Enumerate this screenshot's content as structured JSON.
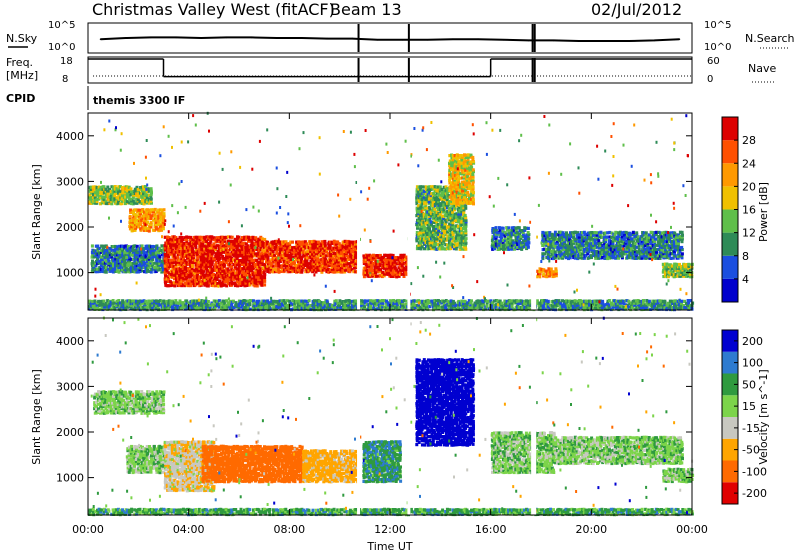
{
  "header": {
    "station": "Christmas Valley West (fitACF)",
    "beam": "Beam 13",
    "date": "02/Jul/2012"
  },
  "noise_panel": {
    "left_label": "N.Sky",
    "right_label": "N.Search",
    "left_ticks": [
      "10^5",
      "10^0"
    ],
    "right_ticks": [
      "10^5",
      "10^0"
    ]
  },
  "freq_panel": {
    "left_label_1": "Freq.",
    "left_label_2": "[MHz]",
    "right_label": "Nave",
    "left_ticks": [
      "18",
      "8"
    ],
    "right_ticks": [
      "60",
      "0"
    ]
  },
  "cpid": {
    "label": "CPID",
    "program": "themis 3300 IF"
  },
  "chart_data": [
    {
      "type": "line",
      "name_left": "N.Sky",
      "name_right": "N.Search",
      "ylim_left": [
        1,
        100000
      ],
      "log_scale": true,
      "x": [
        "00:00",
        "01:00",
        "02:00",
        "03:00",
        "04:00",
        "05:00",
        "06:00",
        "07:00",
        "08:00",
        "09:00",
        "10:00",
        "11:00",
        "12:00",
        "13:00",
        "14:00",
        "15:00",
        "16:00",
        "17:00",
        "18:00",
        "19:00",
        "20:00",
        "21:00",
        "22:00",
        "23:00"
      ],
      "y_sky_log10": [
        2.3,
        2.5,
        2.6,
        2.6,
        2.5,
        2.6,
        2.6,
        2.5,
        2.5,
        2.4,
        2.4,
        2.2,
        2.2,
        2.2,
        2.3,
        2.3,
        2.2,
        2.1,
        2.1,
        2.0,
        2.0,
        2.0,
        2.1,
        2.3
      ]
    },
    {
      "type": "line",
      "name_left": "Freq. [MHz]",
      "name_right": "Nave",
      "ylim_left": [
        8,
        18
      ],
      "ylim_right": [
        0,
        60
      ],
      "freq_steps": [
        {
          "from": "00:00",
          "to": "03:00",
          "value": 18
        },
        {
          "from": "03:00",
          "to": "16:00",
          "value": 10
        },
        {
          "from": "16:00",
          "to": "24:00",
          "value": 18
        }
      ],
      "gaps": [
        "10:45",
        "12:45",
        "17:40",
        "17:45"
      ]
    },
    {
      "type": "heatmap",
      "quantity": "Power",
      "ylabel": "Slant Range [km]",
      "colorbar_label": "Power [dB]",
      "colorbar_ticks": [
        4,
        8,
        12,
        16,
        20,
        24,
        28
      ],
      "clim": [
        0,
        30
      ],
      "yticks": [
        1000,
        2000,
        3000,
        4000
      ],
      "ylim": [
        180,
        4500
      ],
      "xticks": [
        "00:00",
        "04:00",
        "08:00",
        "12:00",
        "16:00",
        "20:00",
        "00:00"
      ],
      "regions": [
        {
          "t0": 0.0,
          "t1": 2.5,
          "r0": 2500,
          "r1": 2900,
          "level": 14
        },
        {
          "t0": 1.6,
          "t1": 3.0,
          "r0": 1900,
          "r1": 2400,
          "level": 20
        },
        {
          "t0": 0.1,
          "t1": 3.0,
          "r0": 1000,
          "r1": 1600,
          "level": 8
        },
        {
          "t0": 3.0,
          "t1": 7.0,
          "r0": 700,
          "r1": 1800,
          "level": 27
        },
        {
          "t0": 7.0,
          "t1": 10.7,
          "r0": 1000,
          "r1": 1700,
          "level": 26
        },
        {
          "t0": 10.9,
          "t1": 12.7,
          "r0": 900,
          "r1": 1400,
          "level": 27
        },
        {
          "t0": 13.0,
          "t1": 15.0,
          "r0": 1500,
          "r1": 2900,
          "level": 12
        },
        {
          "t0": 14.3,
          "t1": 15.3,
          "r0": 2500,
          "r1": 3600,
          "level": 18
        },
        {
          "t0": 16.0,
          "t1": 17.5,
          "r0": 1500,
          "r1": 2000,
          "level": 8
        },
        {
          "t0": 17.6,
          "t1": 18.6,
          "r0": 900,
          "r1": 1100,
          "level": 22
        },
        {
          "t0": 18.0,
          "t1": 23.6,
          "r0": 1300,
          "r1": 1900,
          "level": 8
        },
        {
          "t0": 22.8,
          "t1": 24.0,
          "r0": 900,
          "r1": 1200,
          "level": 14
        },
        {
          "t0": 0.0,
          "t1": 24.0,
          "r0": 180,
          "r1": 400,
          "level": 10
        }
      ]
    },
    {
      "type": "heatmap",
      "quantity": "Velocity",
      "ylabel": "Slant Range [km]",
      "colorbar_label": "Velocity [m s^-1]",
      "colorbar_ticks": [
        200,
        100,
        50,
        15,
        -15,
        -50,
        -100,
        -200
      ],
      "clim": [
        -250,
        250
      ],
      "yticks": [
        1000,
        2000,
        3000,
        4000
      ],
      "ylim": [
        180,
        4500
      ],
      "xticks": [
        "00:00",
        "04:00",
        "08:00",
        "12:00",
        "16:00",
        "20:00",
        "00:00"
      ],
      "xlabel": "Time UT",
      "regions": [
        {
          "t0": 0.2,
          "t1": 3.0,
          "r0": 2400,
          "r1": 2900,
          "level": 0
        },
        {
          "t0": 1.5,
          "t1": 3.0,
          "r0": 1100,
          "r1": 1700,
          "level": 0
        },
        {
          "t0": 3.0,
          "t1": 5.0,
          "r0": 700,
          "r1": 1800,
          "level": -40
        },
        {
          "t0": 4.5,
          "t1": 8.5,
          "r0": 900,
          "r1": 1700,
          "level": -170
        },
        {
          "t0": 8.5,
          "t1": 10.7,
          "r0": 900,
          "r1": 1600,
          "level": -70
        },
        {
          "t0": 10.9,
          "t1": 12.4,
          "r0": 900,
          "r1": 1800,
          "level": 40
        },
        {
          "t0": 13.0,
          "t1": 15.3,
          "r0": 1700,
          "r1": 3600,
          "level": 200
        },
        {
          "t0": 16.0,
          "t1": 18.5,
          "r0": 1100,
          "r1": 2000,
          "level": 0
        },
        {
          "t0": 18.5,
          "t1": 23.6,
          "r0": 1300,
          "r1": 1900,
          "level": 0
        },
        {
          "t0": 22.8,
          "t1": 24.0,
          "r0": 900,
          "r1": 1200,
          "level": 0
        },
        {
          "t0": 0.0,
          "t1": 24.0,
          "r0": 180,
          "r1": 320,
          "level": 30
        }
      ]
    }
  ],
  "colors": {
    "power_scale": [
      "#0000cc",
      "#1b4fe0",
      "#2e8b57",
      "#5fbf4a",
      "#f0c000",
      "#ff9900",
      "#ff5000",
      "#dd0000"
    ],
    "velocity_scale": [
      "#e00000",
      "#ff6a00",
      "#ffa500",
      "#c8c8c0",
      "#7cd44a",
      "#2f9a3f",
      "#2e7bd0",
      "#0000d0"
    ]
  }
}
